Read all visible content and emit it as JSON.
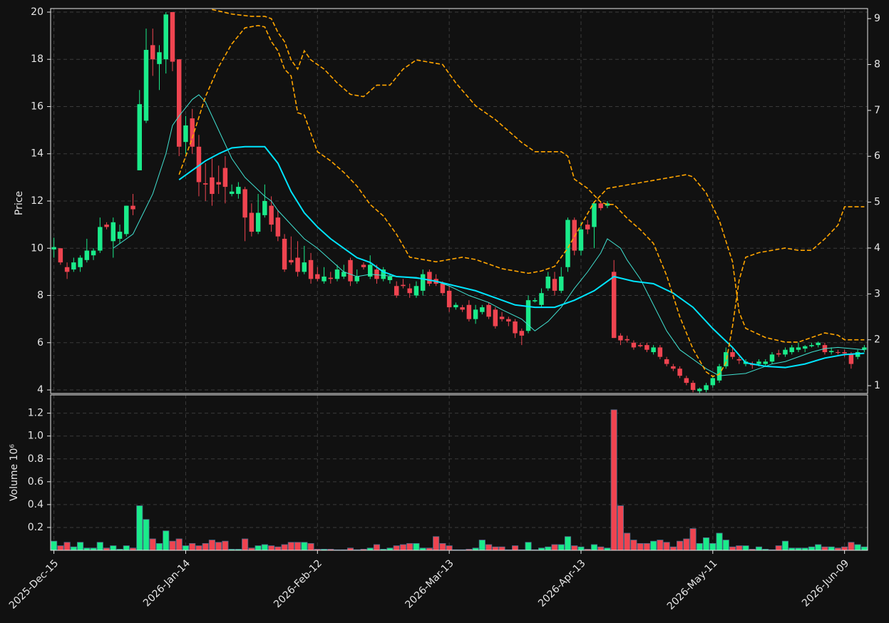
{
  "chart_data": {
    "type": "candlestick",
    "y_label": "Price",
    "up_color": "#1aeb8a",
    "down_color": "#ef4450",
    "grid": true,
    "xlim": [
      -0.5,
      123.5
    ],
    "xticks": [
      {
        "value": 0,
        "label": "2025-Dec-15"
      },
      {
        "value": 20,
        "label": "2026-Jan-14"
      },
      {
        "value": 40,
        "label": "2026-Feb-12"
      },
      {
        "value": 60,
        "label": "2026-Mar-13"
      },
      {
        "value": 80,
        "label": "2026-Apr-13"
      },
      {
        "value": 100,
        "label": "2026-May-11"
      },
      {
        "value": 120,
        "label": "2026-Jun-09"
      }
    ],
    "ylim": [
      3.85,
      20.15
    ],
    "yticks": [
      4,
      6,
      8,
      10,
      12,
      14,
      16,
      18,
      20
    ],
    "y2lim": [
      0.83,
      9.22
    ],
    "y2ticks": [
      1,
      2,
      3,
      4,
      5,
      6,
      7,
      8,
      9
    ],
    "open": [
      9.95,
      10.0,
      9.2,
      9.1,
      9.2,
      9.5,
      9.7,
      9.9,
      11.0,
      10.3,
      10.4,
      10.6,
      11.8,
      13.3,
      15.4,
      18.6,
      17.8,
      18.0,
      20.0,
      18.0,
      14.5,
      15.5,
      14.3,
      12.75,
      13.0,
      12.8,
      13.4,
      12.3,
      12.3,
      12.5,
      11.5,
      10.7,
      11.4,
      11.8,
      11.3,
      10.4,
      9.5,
      9.6,
      9.0,
      9.5,
      8.9,
      8.6,
      8.75,
      8.7,
      8.8,
      9.5,
      8.6,
      9.3,
      8.8,
      9.1,
      8.7,
      8.65,
      8.4,
      8.45,
      8.3,
      8.0,
      8.2,
      9.0,
      8.7,
      8.5,
      8.2,
      7.5,
      7.5,
      7.6,
      7.0,
      7.3,
      7.6,
      7.4,
      7.1,
      7.0,
      6.9,
      6.5,
      6.5,
      7.75,
      7.6,
      8.3,
      8.7,
      8.2,
      9.2,
      11.2,
      9.9,
      11.0,
      10.9,
      11.9,
      11.8,
      9.0,
      6.3,
      6.15,
      6.0,
      5.9,
      5.9,
      5.6,
      5.8,
      5.3,
      5.0,
      4.9,
      4.5,
      4.3,
      3.95,
      4.0,
      4.2,
      4.4,
      5.0,
      5.6,
      5.3,
      5.1,
      5.1,
      5.1,
      5.1,
      5.2,
      5.55,
      5.5,
      5.6,
      5.7,
      5.75,
      5.85,
      5.9,
      5.9,
      5.6,
      5.6,
      5.6,
      5.5,
      5.4,
      5.7
    ],
    "high": [
      10.45,
      10.0,
      9.4,
      9.6,
      9.7,
      10.4,
      10.0,
      11.3,
      11.1,
      11.3,
      11.0,
      11.8,
      12.3,
      16.7,
      19.3,
      19.3,
      18.6,
      20.0,
      20.0,
      18.0,
      15.6,
      15.9,
      14.8,
      13.6,
      13.8,
      13.5,
      13.9,
      12.7,
      12.8,
      12.6,
      11.9,
      12.3,
      12.7,
      12.2,
      11.6,
      10.6,
      10.5,
      10.3,
      10.1,
      9.8,
      9.2,
      9.2,
      9.0,
      9.3,
      9.3,
      9.6,
      9.1,
      9.4,
      9.7,
      9.3,
      9.2,
      8.9,
      8.6,
      8.7,
      8.5,
      8.6,
      9.1,
      9.1,
      8.9,
      8.6,
      8.4,
      7.7,
      7.6,
      7.8,
      7.6,
      7.6,
      7.7,
      7.5,
      7.3,
      7.1,
      7.0,
      6.6,
      8.0,
      7.9,
      8.3,
      9.0,
      9.0,
      9.2,
      11.3,
      11.3,
      11.1,
      11.2,
      12.0,
      12.0,
      12.0,
      9.5,
      6.4,
      6.3,
      6.1,
      6.0,
      6.0,
      5.9,
      5.9,
      5.4,
      5.1,
      5.0,
      4.6,
      4.4,
      4.1,
      4.3,
      4.6,
      5.1,
      5.8,
      5.8,
      5.4,
      5.3,
      5.2,
      5.3,
      5.3,
      5.6,
      5.7,
      5.8,
      5.9,
      6.0,
      5.9,
      6.0,
      6.05,
      6.0,
      5.8,
      5.7,
      5.7,
      5.6,
      5.7,
      5.9
    ],
    "low": [
      9.6,
      9.3,
      8.7,
      9.0,
      9.0,
      9.4,
      9.5,
      9.8,
      10.8,
      9.6,
      10.2,
      10.5,
      11.4,
      13.3,
      15.3,
      17.3,
      16.7,
      17.4,
      17.5,
      13.9,
      14.0,
      14.0,
      12.2,
      12.0,
      11.8,
      12.3,
      11.9,
      12.2,
      12.1,
      10.3,
      10.5,
      10.6,
      11.3,
      10.7,
      10.3,
      9.0,
      9.3,
      8.8,
      8.9,
      8.5,
      8.6,
      8.5,
      8.5,
      8.6,
      8.7,
      8.4,
      8.5,
      9.1,
      8.7,
      8.5,
      8.6,
      8.5,
      7.9,
      8.3,
      7.9,
      7.9,
      8.0,
      8.4,
      8.4,
      8.0,
      7.3,
      7.4,
      7.3,
      6.9,
      6.8,
      7.2,
      7.0,
      6.6,
      6.9,
      6.7,
      6.2,
      5.9,
      6.4,
      7.7,
      7.5,
      8.2,
      8.0,
      8.1,
      9.0,
      9.7,
      9.7,
      10.6,
      10.0,
      11.6,
      11.7,
      6.2,
      5.9,
      6.0,
      5.7,
      5.8,
      5.6,
      5.5,
      5.3,
      5.0,
      4.8,
      4.5,
      4.2,
      3.9,
      3.85,
      3.9,
      4.1,
      4.3,
      4.9,
      5.3,
      5.1,
      5.0,
      4.9,
      5.0,
      5.0,
      5.1,
      5.4,
      5.4,
      5.5,
      5.6,
      5.6,
      5.8,
      5.8,
      5.5,
      5.5,
      5.5,
      5.4,
      4.9,
      5.3,
      5.6
    ],
    "close": [
      10.05,
      9.4,
      9.0,
      9.4,
      9.6,
      9.9,
      9.9,
      10.9,
      10.9,
      11.1,
      10.7,
      11.8,
      11.65,
      16.1,
      18.4,
      18.0,
      18.3,
      19.9,
      17.9,
      14.3,
      15.2,
      14.3,
      12.8,
      12.7,
      12.3,
      12.7,
      12.6,
      12.4,
      12.6,
      11.3,
      10.7,
      11.5,
      12.0,
      11.0,
      10.5,
      9.1,
      9.4,
      9.0,
      9.4,
      8.7,
      8.7,
      8.8,
      8.7,
      9.1,
      9.0,
      8.6,
      8.8,
      9.2,
      9.3,
      8.7,
      9.1,
      8.8,
      8.0,
      8.4,
      8.1,
      8.4,
      8.9,
      8.5,
      8.5,
      8.1,
      7.5,
      7.6,
      7.4,
      7.0,
      7.4,
      7.5,
      7.1,
      6.7,
      7.0,
      6.9,
      6.4,
      6.3,
      7.8,
      7.8,
      8.1,
      8.8,
      8.2,
      8.8,
      11.2,
      9.9,
      10.8,
      10.8,
      11.9,
      11.7,
      11.9,
      6.2,
      6.1,
      6.1,
      5.8,
      5.85,
      5.7,
      5.8,
      5.4,
      5.1,
      4.9,
      4.6,
      4.3,
      4.0,
      4.05,
      4.2,
      4.5,
      5.0,
      5.6,
      5.4,
      5.25,
      5.2,
      5.05,
      5.2,
      5.2,
      5.5,
      5.5,
      5.7,
      5.8,
      5.8,
      5.85,
      5.9,
      6.0,
      5.6,
      5.65,
      5.58,
      5.55,
      5.1,
      5.6,
      5.8
    ],
    "series": [
      {
        "color": "#40e0d0",
        "width": 1,
        "x": [
          9,
          12,
          15,
          17,
          18,
          19,
          21,
          22,
          23,
          25,
          27,
          29,
          32,
          33,
          34,
          36,
          38,
          40,
          42,
          44,
          46,
          48,
          52,
          56,
          58,
          60,
          63,
          66,
          68,
          71,
          73,
          75,
          77,
          79,
          81,
          83,
          84,
          86,
          87,
          89,
          91,
          93,
          95,
          97,
          99,
          101,
          103,
          105,
          107,
          109,
          111,
          113,
          115,
          117,
          119,
          121,
          123
        ],
        "values": [
          10.0,
          10.6,
          12.3,
          14.0,
          15.2,
          15.6,
          16.3,
          16.5,
          16.2,
          15.0,
          13.8,
          13.0,
          12.2,
          12.0,
          11.6,
          11.0,
          10.4,
          10.0,
          9.5,
          9.0,
          8.8,
          8.9,
          8.8,
          8.7,
          8.6,
          8.4,
          8.0,
          7.7,
          7.4,
          7.0,
          6.5,
          6.9,
          7.5,
          8.3,
          9.0,
          9.8,
          10.4,
          10.0,
          9.5,
          8.7,
          7.6,
          6.5,
          5.7,
          5.3,
          4.9,
          4.6,
          4.65,
          4.7,
          4.9,
          5.1,
          5.2,
          5.4,
          5.6,
          5.75,
          5.8,
          5.75,
          5.7
        ]
      },
      {
        "color": "#00e5ff",
        "width": 2,
        "x": [
          19,
          21,
          23,
          25,
          27,
          29,
          31,
          32,
          34,
          36,
          38,
          40,
          42,
          44,
          46,
          48,
          50,
          52,
          55,
          58,
          61,
          64,
          67,
          70,
          73,
          76,
          79,
          82,
          85,
          88,
          91,
          94,
          97,
          100,
          103,
          105,
          108,
          111,
          114,
          117,
          120,
          123
        ],
        "values": [
          12.9,
          13.3,
          13.7,
          14.0,
          14.25,
          14.3,
          14.3,
          14.3,
          13.6,
          12.4,
          11.5,
          10.9,
          10.4,
          10.0,
          9.6,
          9.4,
          9.0,
          8.8,
          8.75,
          8.6,
          8.4,
          8.2,
          7.9,
          7.6,
          7.5,
          7.5,
          7.8,
          8.2,
          8.8,
          8.6,
          8.5,
          8.1,
          7.5,
          6.6,
          5.8,
          5.15,
          5.0,
          4.95,
          5.1,
          5.35,
          5.5,
          5.55
        ]
      },
      {
        "color": "#ffa500",
        "width": 1.6,
        "dash": true,
        "axis": "y2",
        "x": [
          19,
          21,
          23,
          25,
          27,
          29,
          31,
          32,
          33,
          34,
          35,
          36,
          37,
          38,
          40,
          42,
          44,
          46,
          48,
          50,
          52,
          54,
          56,
          58,
          60,
          62,
          64,
          66,
          68,
          70,
          72,
          74,
          76,
          78,
          80,
          82,
          84,
          86,
          88,
          90,
          92,
          94,
          96,
          97,
          99,
          101,
          103,
          104,
          105,
          108,
          111,
          113,
          115,
          117,
          119,
          120,
          123
        ],
        "values": [
          5.6,
          6.4,
          7.3,
          7.95,
          8.45,
          8.8,
          8.85,
          8.82,
          8.5,
          8.3,
          7.9,
          7.75,
          6.95,
          6.9,
          6.1,
          5.9,
          5.65,
          5.35,
          4.95,
          4.7,
          4.3,
          3.8,
          3.75,
          3.7,
          3.75,
          3.8,
          3.75,
          3.65,
          3.55,
          3.5,
          3.45,
          3.5,
          3.6,
          4.0,
          4.5,
          5.0,
          5.3,
          5.35,
          5.4,
          5.45,
          5.5,
          5.55,
          5.6,
          5.55,
          5.2,
          4.6,
          3.7,
          2.6,
          2.25,
          2.05,
          1.95,
          1.95,
          2.05,
          2.15,
          2.1,
          2.0,
          2.0
        ]
      },
      {
        "color": "#ffa500",
        "width": 1.6,
        "dash": true,
        "axis": "y2",
        "x": [
          24,
          27,
          30,
          32,
          33,
          34,
          35,
          36,
          37,
          38,
          39,
          41,
          43,
          45,
          47,
          49,
          51,
          53,
          55,
          57,
          59,
          61,
          64,
          67,
          69,
          71,
          73,
          75,
          77,
          78,
          79,
          81,
          83,
          84,
          85,
          87,
          89,
          91,
          93,
          95,
          97,
          99,
          100,
          101,
          102,
          103,
          104,
          105,
          107,
          109,
          111,
          113,
          115,
          117,
          119,
          120,
          123
        ],
        "values": [
          9.2,
          9.1,
          9.05,
          9.05,
          9.0,
          8.7,
          8.5,
          8.1,
          7.9,
          8.3,
          8.1,
          7.9,
          7.6,
          7.35,
          7.3,
          7.55,
          7.55,
          7.9,
          8.1,
          8.05,
          8.0,
          7.6,
          7.1,
          6.8,
          6.55,
          6.3,
          6.1,
          6.1,
          6.1,
          6.0,
          5.5,
          5.3,
          5.0,
          4.95,
          4.95,
          4.65,
          4.4,
          4.1,
          3.4,
          2.5,
          1.8,
          1.3,
          1.2,
          1.25,
          1.5,
          2.3,
          3.3,
          3.8,
          3.9,
          3.95,
          4.0,
          3.95,
          3.95,
          4.2,
          4.5,
          4.9,
          4.9
        ]
      }
    ],
    "volume": {
      "y_label": "Volume  10⁶",
      "ylim": [
        0,
        1.36
      ],
      "yticks": [
        0.2,
        0.4,
        0.6,
        0.8,
        {
          "value": 1,
          "label": "1.0"
        },
        1.2
      ],
      "values": [
        0.08,
        0.04,
        0.07,
        0.03,
        0.07,
        0.02,
        0.02,
        0.07,
        0.02,
        0.04,
        0.01,
        0.04,
        0.02,
        0.39,
        0.27,
        0.1,
        0.06,
        0.17,
        0.08,
        0.1,
        0.04,
        0.06,
        0.04,
        0.06,
        0.09,
        0.07,
        0.08,
        0.01,
        0.01,
        0.1,
        0.02,
        0.04,
        0.05,
        0.04,
        0.03,
        0.05,
        0.07,
        0.07,
        0.07,
        0.06,
        0.01,
        0.01,
        0.01,
        0.005,
        0.005,
        0.02,
        0.005,
        0.01,
        0.02,
        0.05,
        0.01,
        0.02,
        0.04,
        0.05,
        0.06,
        0.06,
        0.02,
        0.02,
        0.12,
        0.06,
        0.04,
        0.005,
        0.005,
        0.01,
        0.02,
        0.09,
        0.05,
        0.03,
        0.03,
        0.005,
        0.04,
        0.005,
        0.07,
        0.005,
        0.02,
        0.03,
        0.05,
        0.05,
        0.12,
        0.04,
        0.03,
        0.01,
        0.05,
        0.03,
        0.02,
        1.23,
        0.39,
        0.15,
        0.09,
        0.06,
        0.06,
        0.08,
        0.09,
        0.07,
        0.03,
        0.08,
        0.1,
        0.19,
        0.06,
        0.11,
        0.06,
        0.15,
        0.09,
        0.03,
        0.04,
        0.04,
        0.01,
        0.03,
        0.01,
        0.005,
        0.04,
        0.08,
        0.02,
        0.02,
        0.02,
        0.03,
        0.05,
        0.03,
        0.03,
        0.02,
        0.03,
        0.07,
        0.05,
        0.03
      ]
    }
  }
}
